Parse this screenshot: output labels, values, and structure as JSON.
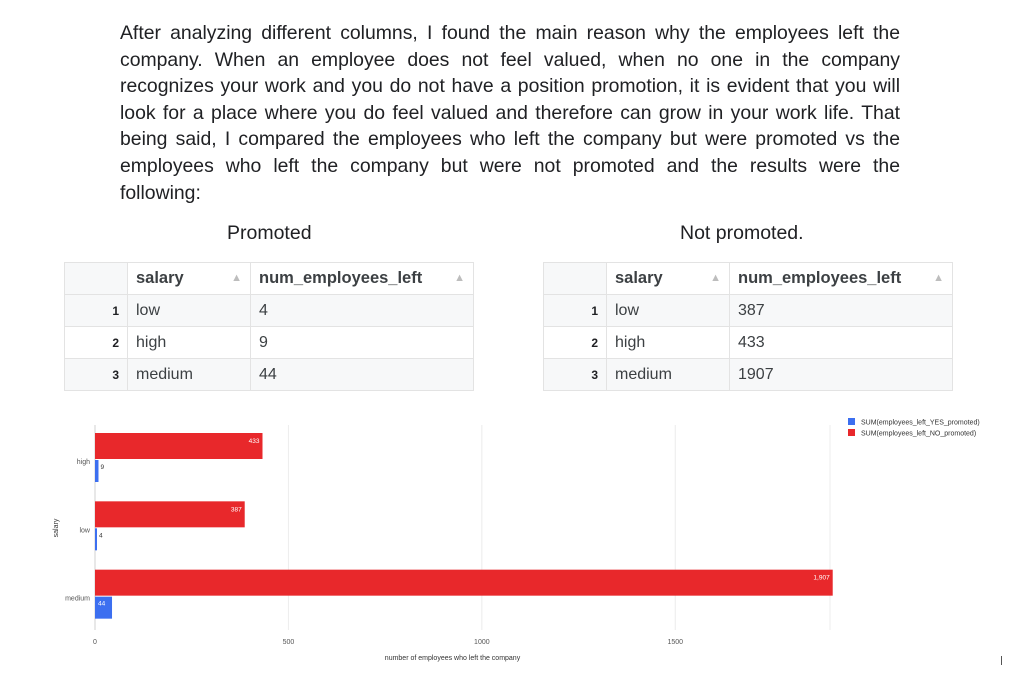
{
  "intro_text": "After analyzing different columns, I found the main reason why the employees left the company. When an employee does not feel valued, when no one in the company recognizes your work and you do not have a position promotion, it is evident that you will look for a place where you do feel valued and therefore can grow in your work life. That being said,  I compared the employees who left the company but were promoted vs the employees who left the company but were not promoted and the results were the following:",
  "tables": {
    "promoted": {
      "caption": "Promoted",
      "headers": [
        "salary",
        "num_employees_left"
      ],
      "rows": [
        {
          "n": "1",
          "salary": "low",
          "value": "4"
        },
        {
          "n": "2",
          "salary": "high",
          "value": "9"
        },
        {
          "n": "3",
          "salary": "medium",
          "value": "44"
        }
      ]
    },
    "not_promoted": {
      "caption": "Not promoted.",
      "headers": [
        "salary",
        "num_employees_left"
      ],
      "rows": [
        {
          "n": "1",
          "salary": "low",
          "value": "387"
        },
        {
          "n": "2",
          "salary": "high",
          "value": "433"
        },
        {
          "n": "3",
          "salary": "medium",
          "value": "1907"
        }
      ]
    }
  },
  "chart_data": {
    "type": "bar",
    "orientation": "horizontal",
    "categories": [
      "high",
      "low",
      "medium"
    ],
    "series": [
      {
        "name": "SUM(employees_left_NO_promoted)",
        "values": [
          433,
          387,
          1907
        ],
        "labels": [
          "433",
          "387",
          "1,907"
        ],
        "color": "#e8282b"
      },
      {
        "name": "SUM(employees_left_YES_promoted)",
        "values": [
          9,
          4,
          44
        ],
        "labels": [
          "9",
          "4",
          "44"
        ],
        "color": "#3c6ff0"
      }
    ],
    "legend_order": [
      "SUM(employees_left_YES_promoted)",
      "SUM(employees_left_NO_promoted)"
    ],
    "xlabel": "number of employees who left the company",
    "ylabel": "salary",
    "xticks": [
      "0",
      "500",
      "1000",
      "1500"
    ],
    "xtick_values": [
      0,
      500,
      1000,
      1500
    ],
    "xlim": [
      0,
      1900
    ],
    "legend_position": "top-right",
    "grid": true
  }
}
